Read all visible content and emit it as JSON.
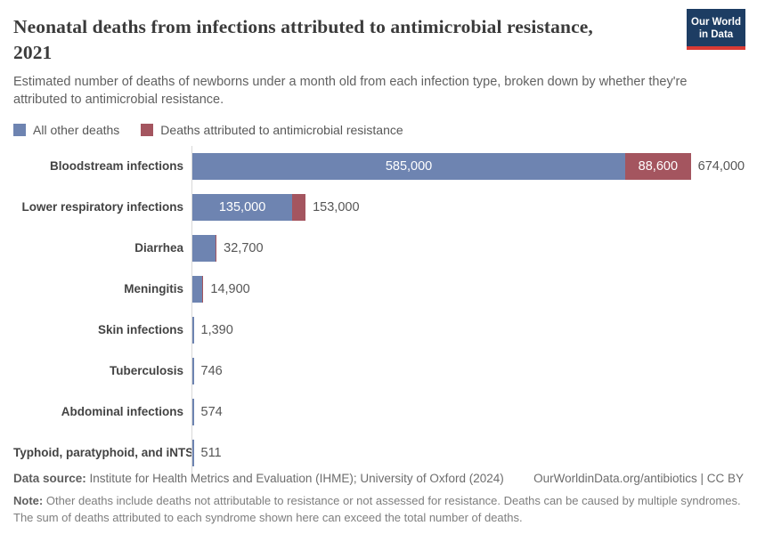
{
  "header": {
    "title_lines": [
      "Neonatal deaths from infections attributed to antimicrobial resistance,",
      "2021"
    ],
    "subtitle": "Estimated number of deaths of newborns under a month old from each infection type, broken down by whether they're attributed to antimicrobial resistance.",
    "logo": {
      "line1": "Our World",
      "line2": "in Data"
    }
  },
  "colors": {
    "other": "#6e84b1",
    "amr": "#a4555f",
    "axis": "#d8d8d8",
    "logo_bg": "#1d3d63",
    "logo_accent": "#d93a34"
  },
  "legend": {
    "items": [
      {
        "label": "All other deaths",
        "color_key": "other"
      },
      {
        "label": "Deaths attributed to antimicrobial resistance",
        "color_key": "amr"
      }
    ]
  },
  "chart_data": {
    "type": "bar",
    "orientation": "horizontal",
    "title": "Neonatal deaths from infections attributed to antimicrobial resistance, 2021",
    "xlabel": "",
    "ylabel": "",
    "x_max": 674000,
    "grid": false,
    "legend_position": "top",
    "categories": [
      "Bloodstream infections",
      "Lower respiratory infections",
      "Diarrhea",
      "Meningitis",
      "Skin infections",
      "Tuberculosis",
      "Abdominal infections",
      "Typhoid, paratyphoid, and iNTS"
    ],
    "series": [
      {
        "name": "All other deaths",
        "values": [
          585000,
          135000,
          null,
          null,
          null,
          null,
          null,
          null
        ]
      },
      {
        "name": "Deaths attributed to antimicrobial resistance",
        "values": [
          88600,
          18000,
          null,
          null,
          null,
          null,
          null,
          null
        ]
      }
    ],
    "totals": [
      674000,
      153000,
      32700,
      14900,
      1390,
      746,
      574,
      511
    ],
    "rows": [
      {
        "category": "Bloodstream infections",
        "other": 585000,
        "amr": 88600,
        "total": 674000,
        "other_label": "585,000",
        "amr_label": "88,600",
        "total_label": "674,000",
        "amr_sliver": false
      },
      {
        "category": "Lower respiratory infections",
        "other": 135000,
        "amr": 18000,
        "total": 153000,
        "other_label": "135,000",
        "amr_label": "",
        "total_label": "153,000",
        "amr_sliver": false
      },
      {
        "category": "Diarrhea",
        "other": null,
        "amr": null,
        "total": 32700,
        "other_label": "",
        "amr_label": "",
        "total_label": "32,700",
        "amr_sliver": true
      },
      {
        "category": "Meningitis",
        "other": null,
        "amr": null,
        "total": 14900,
        "other_label": "",
        "amr_label": "",
        "total_label": "14,900",
        "amr_sliver": true
      },
      {
        "category": "Skin infections",
        "other": null,
        "amr": null,
        "total": 1390,
        "other_label": "",
        "amr_label": "",
        "total_label": "1,390",
        "amr_sliver": false
      },
      {
        "category": "Tuberculosis",
        "other": null,
        "amr": null,
        "total": 746,
        "other_label": "",
        "amr_label": "",
        "total_label": "746",
        "amr_sliver": false
      },
      {
        "category": "Abdominal infections",
        "other": null,
        "amr": null,
        "total": 574,
        "other_label": "",
        "amr_label": "",
        "total_label": "574",
        "amr_sliver": false
      },
      {
        "category": "Typhoid, paratyphoid, and iNTS",
        "other": null,
        "amr": null,
        "total": 511,
        "other_label": "",
        "amr_label": "",
        "total_label": "511",
        "amr_sliver": false
      }
    ]
  },
  "footer": {
    "source_label": "Data source:",
    "source_text": "Institute for Health Metrics and Evaluation (IHME); University of Oxford (2024)",
    "link_text": "OurWorldinData.org/antibiotics | CC BY",
    "note_label": "Note:",
    "note_text": "Other deaths include deaths not attributable to resistance or not assessed for resistance. Deaths can be caused by multiple syndromes. The sum of deaths attributed to each syndrome shown here can exceed the total number of deaths."
  }
}
